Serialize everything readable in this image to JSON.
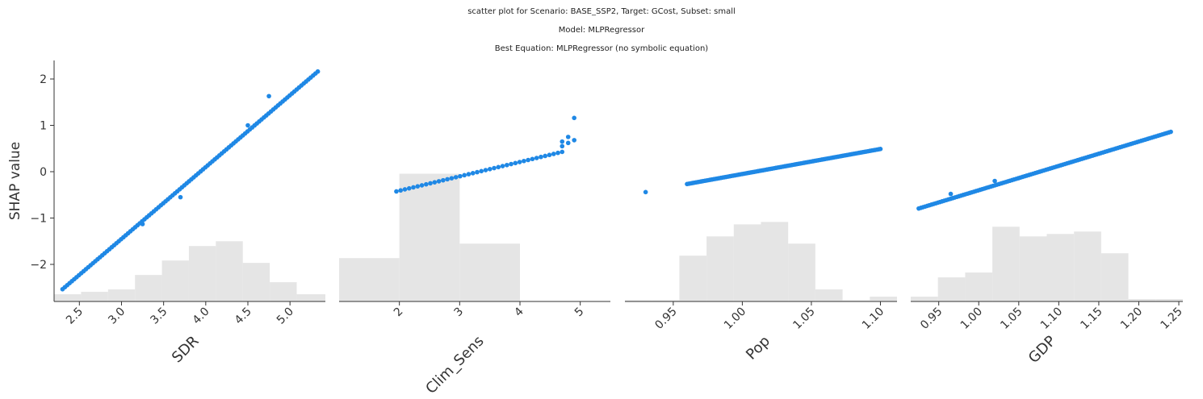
{
  "title": {
    "line1": "scatter plot for Scenario: BASE_SSP2, Target: GCost, Subset: small",
    "line2": "Model: MLPRegressor",
    "line3": "Best Equation: MLPRegressor (no symbolic equation)"
  },
  "colors": {
    "point": "#1f88e5",
    "hist": "#e5e5e5",
    "axis": "#333333"
  },
  "chart_data": {
    "type": "scatter",
    "ylabel": "SHAP value",
    "ylim": [
      -2.8,
      2.4
    ],
    "yticks": [
      -2,
      -1,
      0,
      1,
      2
    ],
    "ytick_labels": [
      "−2",
      "−1",
      "0",
      "1",
      "2"
    ],
    "grid": false,
    "panels": [
      {
        "xlabel": "SDR",
        "xlim": [
          2.2,
          5.42
        ],
        "xticks": [
          2.5,
          3.0,
          3.5,
          4.0,
          4.5,
          5.0
        ],
        "xtick_labels": [
          "2.5",
          "3.0",
          "3.5",
          "4.0",
          "4.5",
          "5.0"
        ],
        "hist": {
          "edges": [
            2.2,
            2.52,
            2.84,
            3.16,
            3.48,
            3.8,
            4.12,
            4.44,
            4.76,
            5.08,
            5.42
          ],
          "heights": [
            0.03,
            0.04,
            0.05,
            0.11,
            0.17,
            0.23,
            0.25,
            0.16,
            0.08,
            0.03
          ]
        },
        "points": {
          "generator": "linear",
          "x_range": [
            2.3,
            5.33
          ],
          "count": 110,
          "slope": 1.55,
          "intercept": -6.1,
          "extra": [
            [
              4.75,
              1.63
            ],
            [
              4.5,
              1.0
            ],
            [
              3.7,
              -0.55
            ],
            [
              3.25,
              -1.13
            ]
          ]
        }
      },
      {
        "xlabel": "Clim_Sens",
        "xlim": [
          1.0,
          5.5
        ],
        "xticks": [
          2,
          3,
          4,
          5
        ],
        "xtick_labels": [
          "2",
          "3",
          "4",
          "5"
        ],
        "hist": {
          "edges": [
            1.0,
            2.0,
            3.0,
            4.0,
            5.0
          ],
          "heights": [
            0.18,
            0.53,
            0.24,
            0.0
          ]
        },
        "points": {
          "generator": "linear",
          "x_range": [
            1.95,
            4.7
          ],
          "count": 40,
          "slope": 0.31,
          "intercept": -1.03,
          "extra": [
            [
              4.7,
              0.55
            ],
            [
              4.7,
              0.65
            ],
            [
              4.8,
              0.62
            ],
            [
              4.8,
              0.75
            ],
            [
              4.9,
              0.68
            ],
            [
              4.9,
              1.16
            ]
          ]
        }
      },
      {
        "xlabel": "Pop",
        "xlim": [
          0.915,
          1.112
        ],
        "xticks": [
          0.95,
          1.0,
          1.05,
          1.1
        ],
        "xtick_labels": [
          "0.95",
          "1.00",
          "1.05",
          "1.10"
        ],
        "hist": {
          "edges": [
            0.915,
            0.9347,
            0.9544,
            0.9741,
            0.9938,
            1.0135,
            1.0332,
            1.0529,
            1.0726,
            1.0923,
            1.112
          ],
          "heights": [
            0.005,
            0.005,
            0.19,
            0.27,
            0.32,
            0.33,
            0.24,
            0.05,
            0.005,
            0.02
          ]
        },
        "points": {
          "generator": "linear",
          "x_range": [
            0.96,
            1.1
          ],
          "count": 110,
          "slope": 5.4,
          "intercept": -5.45,
          "extra": [
            [
              0.93,
              -0.44
            ]
          ]
        }
      },
      {
        "xlabel": "GDP",
        "xlim": [
          0.915,
          1.255
        ],
        "xticks": [
          0.95,
          1.0,
          1.05,
          1.1,
          1.15,
          1.2,
          1.25
        ],
        "xtick_labels": [
          "0.95",
          "1.00",
          "1.05",
          "1.10",
          "1.15",
          "1.20",
          "1.25"
        ],
        "hist": {
          "edges": [
            0.915,
            0.949,
            0.983,
            1.017,
            1.051,
            1.085,
            1.119,
            1.153,
            1.187,
            1.221,
            1.255
          ],
          "heights": [
            0.02,
            0.1,
            0.12,
            0.31,
            0.27,
            0.28,
            0.29,
            0.2,
            0.01,
            0.01
          ]
        },
        "points": {
          "generator": "linear",
          "x_range": [
            0.925,
            1.24
          ],
          "count": 120,
          "slope": 5.25,
          "intercept": -5.65,
          "extra": [
            [
              0.965,
              -0.48
            ],
            [
              1.02,
              -0.2
            ]
          ]
        }
      }
    ]
  }
}
